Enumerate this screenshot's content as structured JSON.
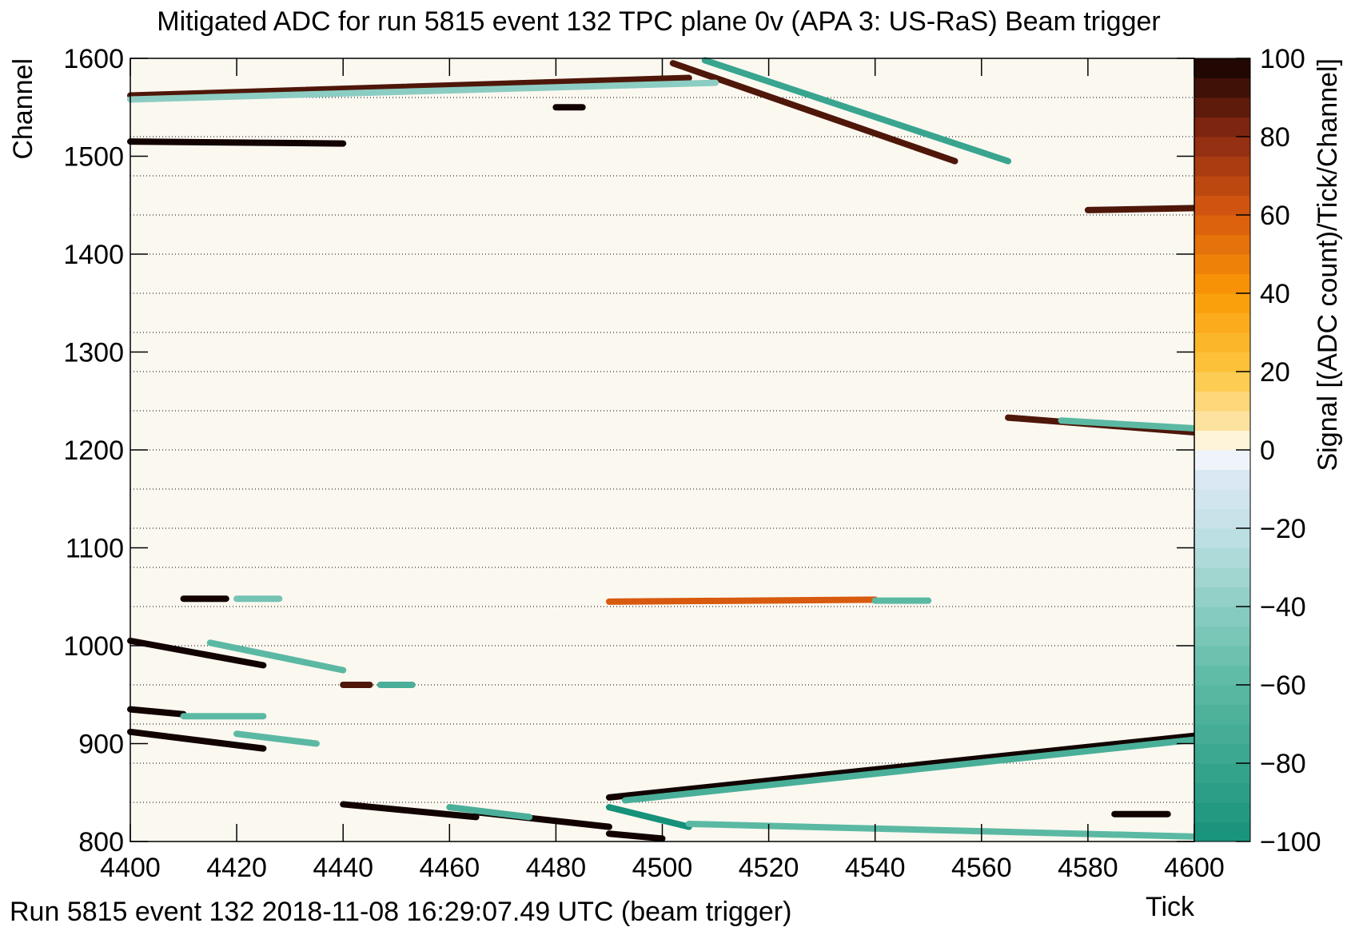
{
  "chart_data": {
    "type": "heatmap",
    "title": "Mitigated ADC for run 5815 event 132 TPC plane 0v (APA 3: US-RaS) Beam trigger",
    "x_label": "Tick",
    "y_label": "Channel",
    "z_label": "Signal [(ADC count)/Tick/Channel]",
    "footer": "Run 5815 event 132 2018-11-08 16:29:07.49 UTC (beam trigger)",
    "xlim": [
      4400,
      4600
    ],
    "xticks": [
      4400,
      4420,
      4440,
      4460,
      4480,
      4500,
      4520,
      4540,
      4560,
      4580,
      4600
    ],
    "ylim": [
      800,
      1600
    ],
    "yticks": [
      800,
      900,
      1000,
      1100,
      1200,
      1300,
      1400,
      1500,
      1600
    ],
    "zlim": [
      -100,
      100
    ],
    "zticks": [
      {
        "value": -100,
        "label": "−100"
      },
      {
        "value": -80,
        "label": "−80"
      },
      {
        "value": -60,
        "label": "−60"
      },
      {
        "value": -40,
        "label": "−40"
      },
      {
        "value": -20,
        "label": "−20"
      },
      0,
      20,
      40,
      60,
      80,
      100
    ],
    "colorscale": [
      {
        "value": -100,
        "color": "#16917a"
      },
      {
        "value": -60,
        "color": "#5bb9a3"
      },
      {
        "value": -40,
        "color": "#8ccdc3"
      },
      {
        "value": -20,
        "color": "#c2e1e6"
      },
      {
        "value": -5,
        "color": "#dde9f4"
      },
      {
        "value": 0,
        "color": "#ffffff"
      },
      {
        "value": 5,
        "color": "#fde8b2"
      },
      {
        "value": 20,
        "color": "#fdc640"
      },
      {
        "value": 40,
        "color": "#fb9a06"
      },
      {
        "value": 60,
        "color": "#d85a0e"
      },
      {
        "value": 80,
        "color": "#8c2a12"
      },
      {
        "value": 100,
        "color": "#120300"
      }
    ],
    "channel_dividers": [
      840,
      880,
      920,
      960,
      1000,
      1040,
      1080,
      1120,
      1160,
      1200,
      1240,
      1280,
      1320,
      1360,
      1400,
      1440,
      1480,
      1520,
      1560
    ],
    "tracks": [
      {
        "x": [
          4490,
          4600
        ],
        "y": [
          845,
          908
        ],
        "value": 100
      },
      {
        "x": [
          4493,
          4600
        ],
        "y": [
          842,
          904
        ],
        "value": -70
      },
      {
        "x": [
          4502,
          4555
        ],
        "y": [
          1595,
          1495
        ],
        "value": 90
      },
      {
        "x": [
          4508,
          4565
        ],
        "y": [
          1598,
          1495
        ],
        "value": -80
      },
      {
        "x": [
          4400,
          4505
        ],
        "y": [
          1562,
          1580
        ],
        "value": 90
      },
      {
        "x": [
          4400,
          4510
        ],
        "y": [
          1558,
          1575
        ],
        "value": -40
      },
      {
        "x": [
          4400,
          4440
        ],
        "y": [
          1515,
          1513
        ],
        "value": 100
      },
      {
        "x": [
          4565,
          4600
        ],
        "y": [
          1233,
          1218
        ],
        "value": 90
      },
      {
        "x": [
          4575,
          4600
        ],
        "y": [
          1230,
          1222
        ],
        "value": -60
      },
      {
        "x": [
          4400,
          4425
        ],
        "y": [
          1005,
          980
        ],
        "value": 100
      },
      {
        "x": [
          4415,
          4440
        ],
        "y": [
          1003,
          975
        ],
        "value": -60
      },
      {
        "x": [
          4440,
          4445
        ],
        "y": [
          960,
          960
        ],
        "value": 90
      },
      {
        "x": [
          4447,
          4453
        ],
        "y": [
          960,
          960
        ],
        "value": -70
      },
      {
        "x": [
          4400,
          4425
        ],
        "y": [
          912,
          895
        ],
        "value": 100
      },
      {
        "x": [
          4420,
          4435
        ],
        "y": [
          910,
          900
        ],
        "value": -60
      },
      {
        "x": [
          4400,
          4410
        ],
        "y": [
          935,
          930
        ],
        "value": 100
      },
      {
        "x": [
          4410,
          4425
        ],
        "y": [
          928,
          928
        ],
        "value": -60
      },
      {
        "x": [
          4440,
          4465
        ],
        "y": [
          838,
          825
        ],
        "value": 100
      },
      {
        "x": [
          4465,
          4490
        ],
        "y": [
          830,
          815
        ],
        "value": 100
      },
      {
        "x": [
          4460,
          4475
        ],
        "y": [
          835,
          825
        ],
        "value": -70
      },
      {
        "x": [
          4490,
          4505
        ],
        "y": [
          835,
          815
        ],
        "value": -100
      },
      {
        "x": [
          4505,
          4600
        ],
        "y": [
          818,
          805
        ],
        "value": -60
      },
      {
        "x": [
          4490,
          4500
        ],
        "y": [
          808,
          803
        ],
        "value": 100
      },
      {
        "x": [
          4410,
          4418
        ],
        "y": [
          1048,
          1048
        ],
        "value": 100
      },
      {
        "x": [
          4420,
          4428
        ],
        "y": [
          1048,
          1048
        ],
        "value": -50
      },
      {
        "x": [
          4490,
          4540
        ],
        "y": [
          1045,
          1047
        ],
        "value": 60
      },
      {
        "x": [
          4540,
          4550
        ],
        "y": [
          1046,
          1046
        ],
        "value": -60
      },
      {
        "x": [
          4580,
          4600
        ],
        "y": [
          1445,
          1447
        ],
        "value": 90
      },
      {
        "x": [
          4585,
          4595
        ],
        "y": [
          828,
          828
        ],
        "value": 100
      },
      {
        "x": [
          4480,
          4485
        ],
        "y": [
          1550,
          1550
        ],
        "value": 100
      }
    ]
  }
}
